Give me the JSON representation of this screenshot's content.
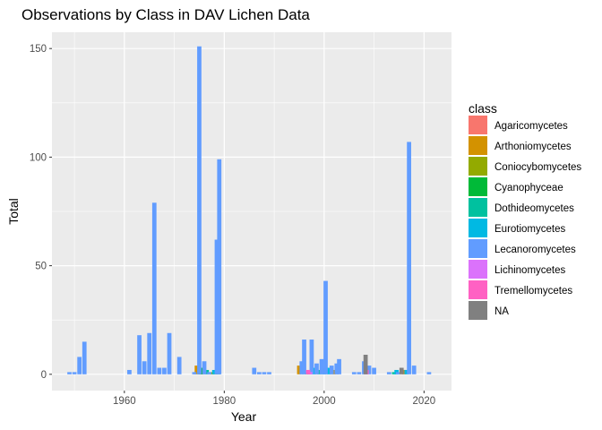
{
  "chart_data": {
    "type": "bar",
    "title": "Observations by Class in DAV Lichen Data",
    "xlabel": "Year",
    "ylabel": "Total",
    "xlim": [
      1945.5,
      2025.5
    ],
    "ylim": [
      -7.5,
      157.5
    ],
    "x_ticks": [
      1960,
      1980,
      2000,
      2020
    ],
    "y_ticks": [
      0,
      50,
      100,
      150
    ],
    "grid": true,
    "legend": {
      "title": "class",
      "position": "right"
    },
    "series": [
      {
        "name": "Agaricomycetes",
        "color": "#F8766D",
        "points": [
          [
            1975,
            1
          ],
          [
            1997,
            1
          ]
        ]
      },
      {
        "name": "Arthoniomycetes",
        "color": "#D39200",
        "points": [
          [
            1974.5,
            4
          ],
          [
            1978.3,
            1
          ],
          [
            1995,
            4
          ],
          [
            2002,
            2
          ],
          [
            2016,
            2
          ]
        ]
      },
      {
        "name": "Coniocybomycetes",
        "color": "#93AA00",
        "points": [
          [
            1975.5,
            2
          ],
          [
            1977.5,
            1
          ]
        ]
      },
      {
        "name": "Cyanophyceae",
        "color": "#00BA38",
        "points": [
          [
            1975.3,
            3
          ],
          [
            1978.8,
            2
          ]
        ]
      },
      {
        "name": "Dothideomycetes",
        "color": "#00C19F",
        "points": [
          [
            1976.5,
            2
          ],
          [
            1996.5,
            1
          ],
          [
            1999,
            2
          ],
          [
            2014,
            1
          ]
        ]
      },
      {
        "name": "Eurotiomycetes",
        "color": "#00B9E3",
        "points": [
          [
            1978,
            2
          ],
          [
            1998,
            3
          ],
          [
            2000,
            3
          ],
          [
            2001,
            3
          ],
          [
            2014.5,
            2
          ],
          [
            2016.5,
            2
          ]
        ]
      },
      {
        "name": "Lecanoromycetes",
        "color": "#619CFF",
        "points": [
          [
            1949,
            1
          ],
          [
            1950,
            1
          ],
          [
            1951,
            8
          ],
          [
            1952,
            15
          ],
          [
            1961,
            2
          ],
          [
            1963,
            18
          ],
          [
            1964,
            6
          ],
          [
            1965,
            19
          ],
          [
            1966,
            79
          ],
          [
            1967,
            3
          ],
          [
            1968,
            3
          ],
          [
            1969,
            19
          ],
          [
            1971,
            8
          ],
          [
            1974,
            1
          ],
          [
            1975,
            151
          ],
          [
            1976,
            6
          ],
          [
            1977,
            1
          ],
          [
            1978.5,
            62
          ],
          [
            1979,
            99
          ],
          [
            1986,
            3
          ],
          [
            1987,
            1
          ],
          [
            1988,
            1
          ],
          [
            1989,
            1
          ],
          [
            1995.5,
            6
          ],
          [
            1996,
            16
          ],
          [
            1997.5,
            16
          ],
          [
            1998.5,
            5
          ],
          [
            1999.5,
            7
          ],
          [
            2000.3,
            43
          ],
          [
            2001.5,
            4
          ],
          [
            2002.5,
            5
          ],
          [
            2003,
            7
          ],
          [
            2006,
            1
          ],
          [
            2007,
            1
          ],
          [
            2008,
            6
          ],
          [
            2009,
            4
          ],
          [
            2010,
            3
          ],
          [
            2013,
            1
          ],
          [
            2014.8,
            1
          ],
          [
            2017,
            107
          ],
          [
            2018,
            4
          ],
          [
            2021,
            1
          ]
        ]
      },
      {
        "name": "Lichinomycetes",
        "color": "#DB72FB",
        "points": [
          [
            1997.2,
            1
          ]
        ]
      },
      {
        "name": "Tremellomycetes",
        "color": "#FF61C3",
        "points": [
          [
            1996.8,
            2
          ],
          [
            2008.5,
            2
          ]
        ]
      },
      {
        "name": "NA",
        "color": "#808080",
        "points": [
          [
            2008.3,
            9
          ],
          [
            2015.5,
            3
          ]
        ]
      }
    ]
  }
}
